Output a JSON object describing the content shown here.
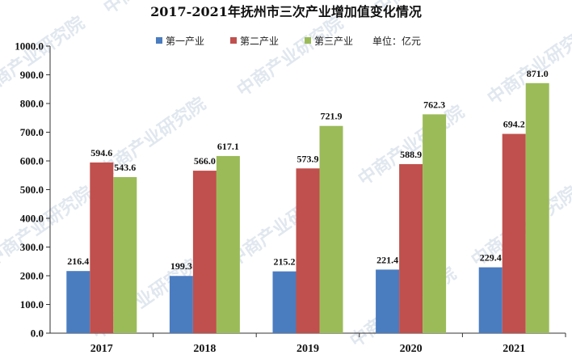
{
  "watermark": "中商产业研究院",
  "chart_data": {
    "type": "bar",
    "title": "2017-2021年抚州市三次产业增加值变化情况",
    "categories": [
      "2017",
      "2018",
      "2019",
      "2020",
      "2021"
    ],
    "series": [
      {
        "name": "第一产业",
        "color": "#4a7cc0",
        "values": [
          216.4,
          199.3,
          215.2,
          221.4,
          229.4
        ]
      },
      {
        "name": "第二产业",
        "color": "#c0504d",
        "values": [
          594.6,
          566.0,
          573.9,
          588.9,
          694.2
        ]
      },
      {
        "name": "第三产业",
        "color": "#9bbb59",
        "values": [
          543.6,
          617.1,
          721.9,
          762.3,
          871.0
        ]
      }
    ],
    "unit_label": "单位：亿元",
    "ylim": [
      0,
      1000
    ],
    "ytick_step": 100,
    "legend": "top-right",
    "grid": false
  }
}
